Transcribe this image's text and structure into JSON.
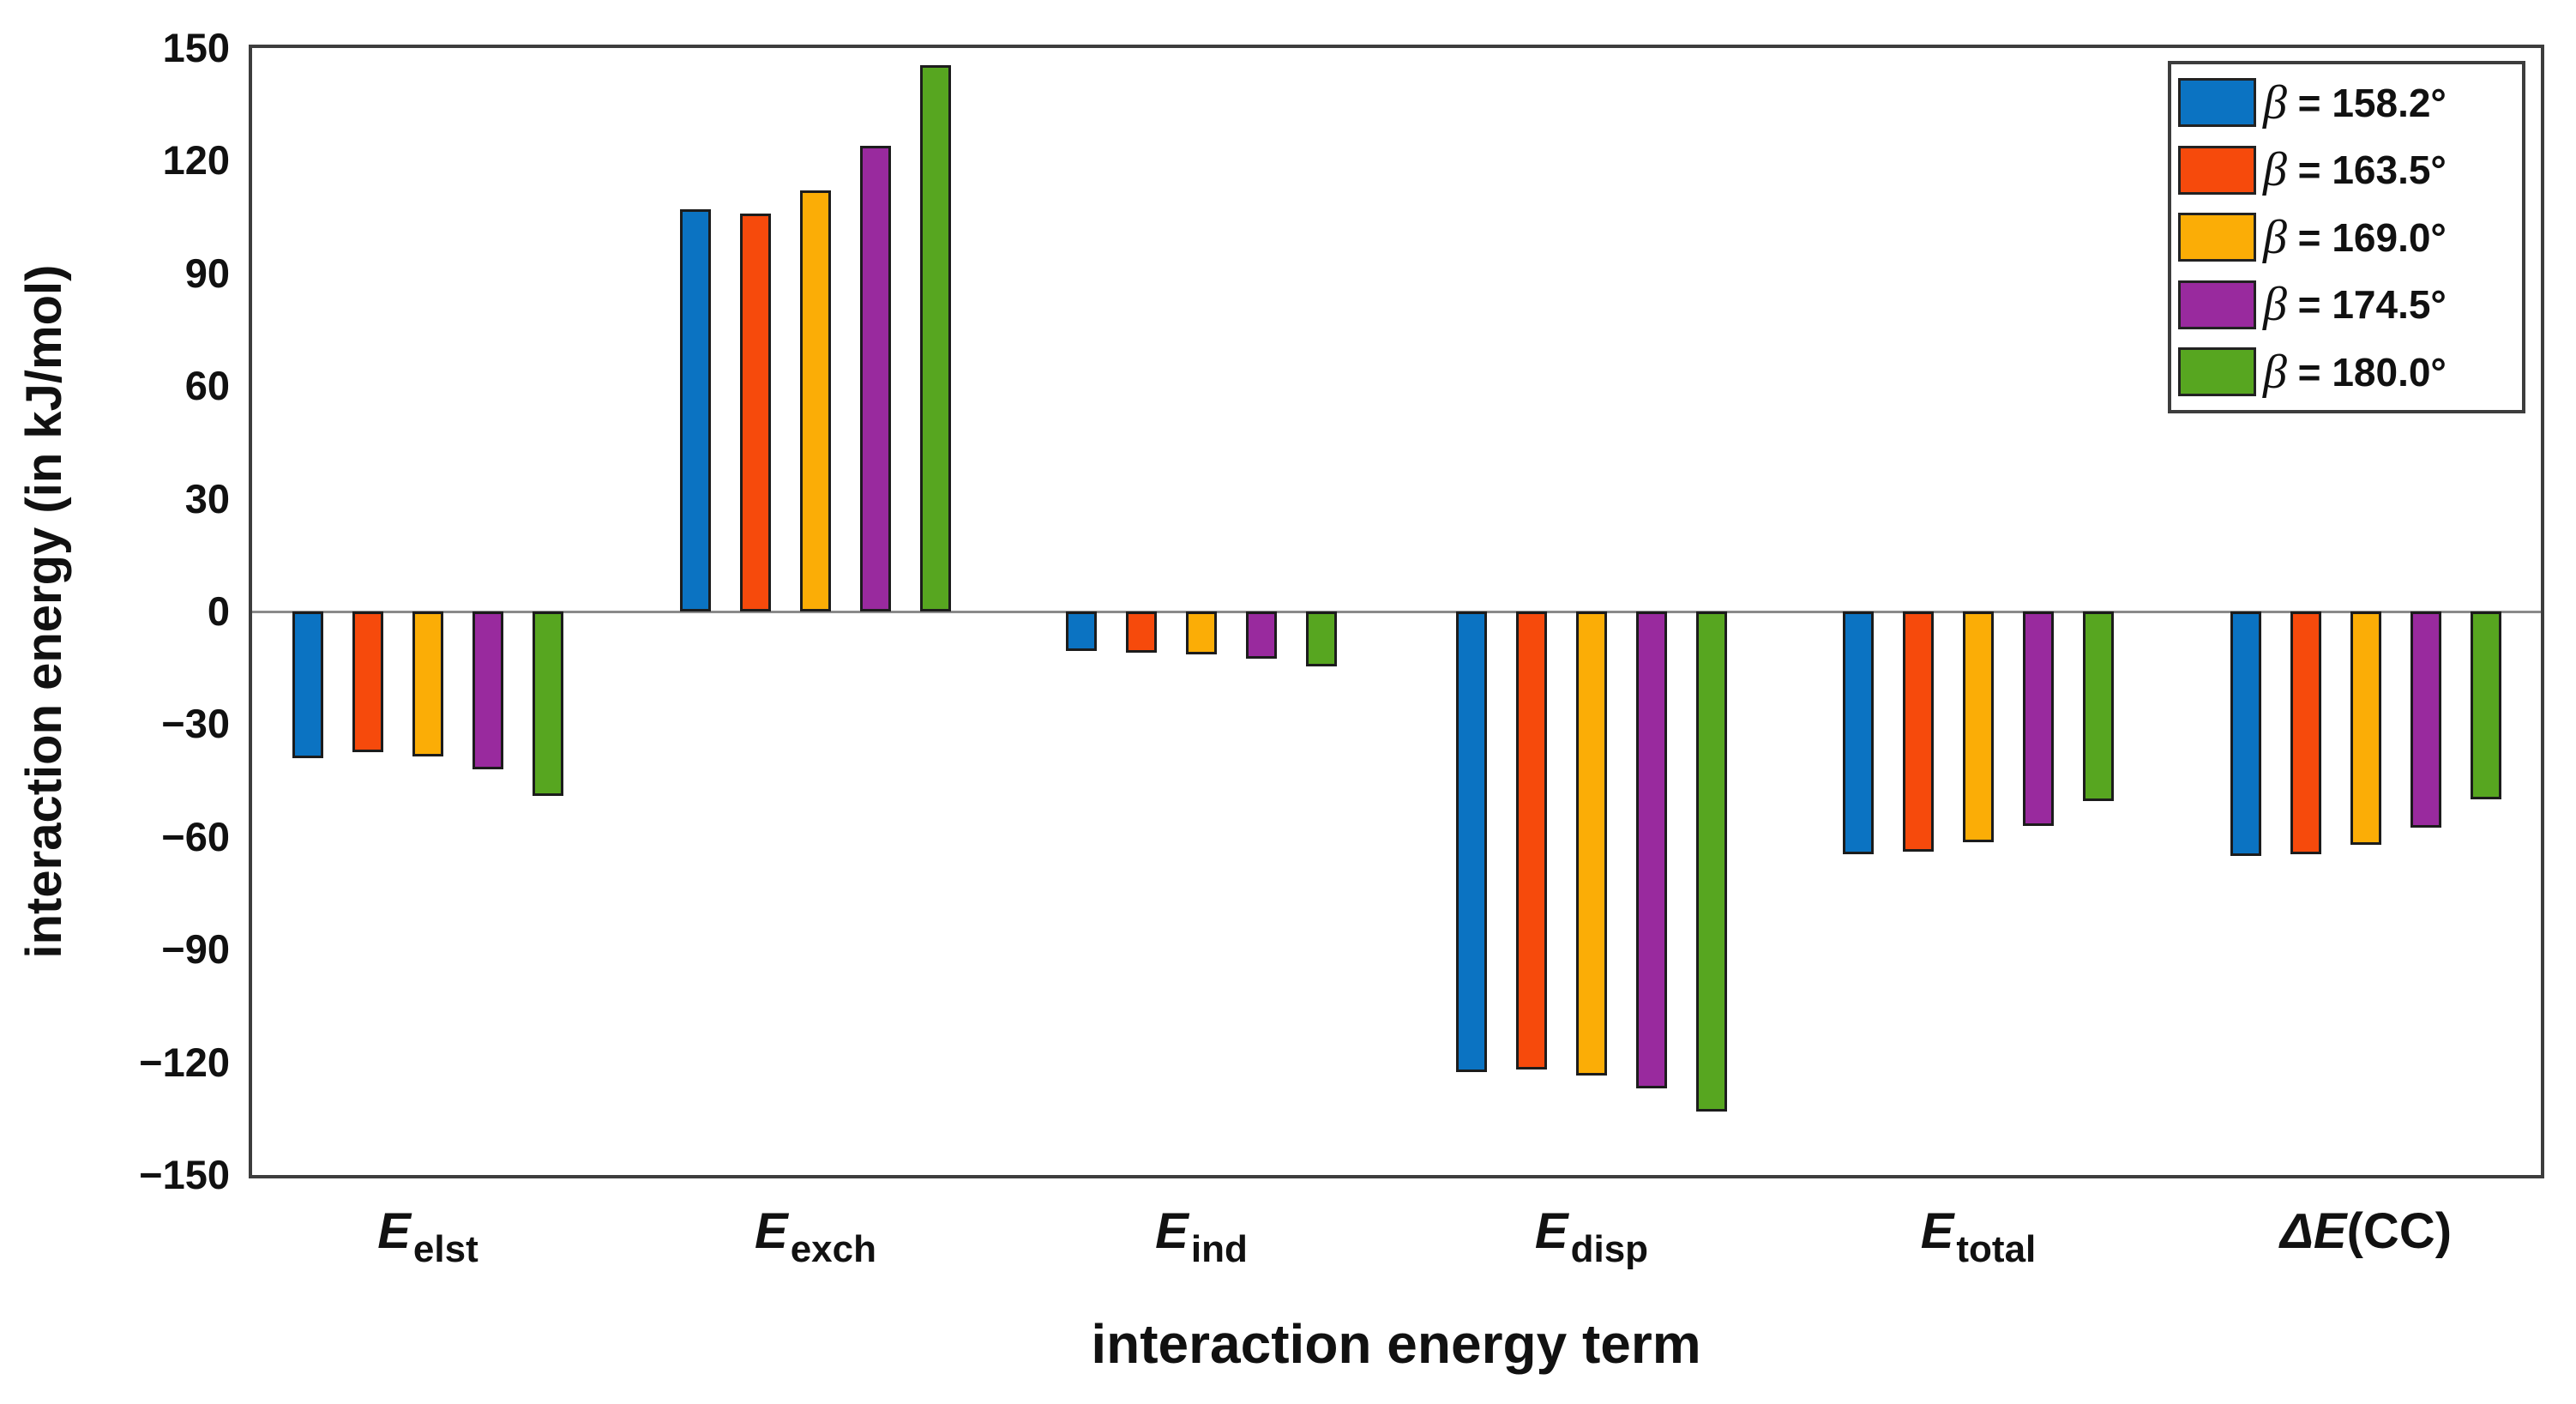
{
  "chart_data": {
    "type": "bar",
    "title": "",
    "xlabel": "interaction energy term",
    "ylabel": "interaction energy (in kJ/mol)",
    "ylim": [
      -150,
      150
    ],
    "ytick_step": 30,
    "yticks": [
      150,
      120,
      90,
      60,
      30,
      0,
      -30,
      -60,
      -90,
      -120,
      -150
    ],
    "grid": "off",
    "legend_position": "top-right",
    "zero_line": true,
    "categories": [
      {
        "pre": "",
        "main": "E",
        "sub": "elst",
        "post": ""
      },
      {
        "pre": "",
        "main": "E",
        "sub": "exch",
        "post": ""
      },
      {
        "pre": "",
        "main": "E",
        "sub": "ind",
        "post": ""
      },
      {
        "pre": "",
        "main": "E",
        "sub": "disp",
        "post": ""
      },
      {
        "pre": "",
        "main": "E",
        "sub": "total",
        "post": ""
      },
      {
        "pre": "Δ",
        "main": "E",
        "sub": "",
        "post": "(CC)"
      }
    ],
    "series": [
      {
        "name": "β = 158.2°",
        "color": "#0b73c2",
        "values": [
          -39.0,
          107.0,
          -10.5,
          -122.5,
          -64.5,
          -65.0
        ]
      },
      {
        "name": "β = 163.5°",
        "color": "#f64a0c",
        "values": [
          -37.5,
          106.0,
          -11.0,
          -122.0,
          -64.0,
          -64.5
        ]
      },
      {
        "name": "β = 169.0°",
        "color": "#fbad06",
        "values": [
          -38.5,
          112.0,
          -11.5,
          -123.5,
          -61.5,
          -62.0
        ]
      },
      {
        "name": "β = 174.5°",
        "color": "#992a9e",
        "values": [
          -42.0,
          124.0,
          -12.5,
          -127.0,
          -57.0,
          -57.5
        ]
      },
      {
        "name": "β = 180.0°",
        "color": "#57a620",
        "values": [
          -49.0,
          145.5,
          -14.5,
          -133.0,
          -50.5,
          -50.0
        ]
      }
    ],
    "colors": {
      "frame": "#3d3d3d",
      "zero_line": "#8a8a8a",
      "bar_outline": "#1c1c1c",
      "text": "#111111"
    }
  }
}
